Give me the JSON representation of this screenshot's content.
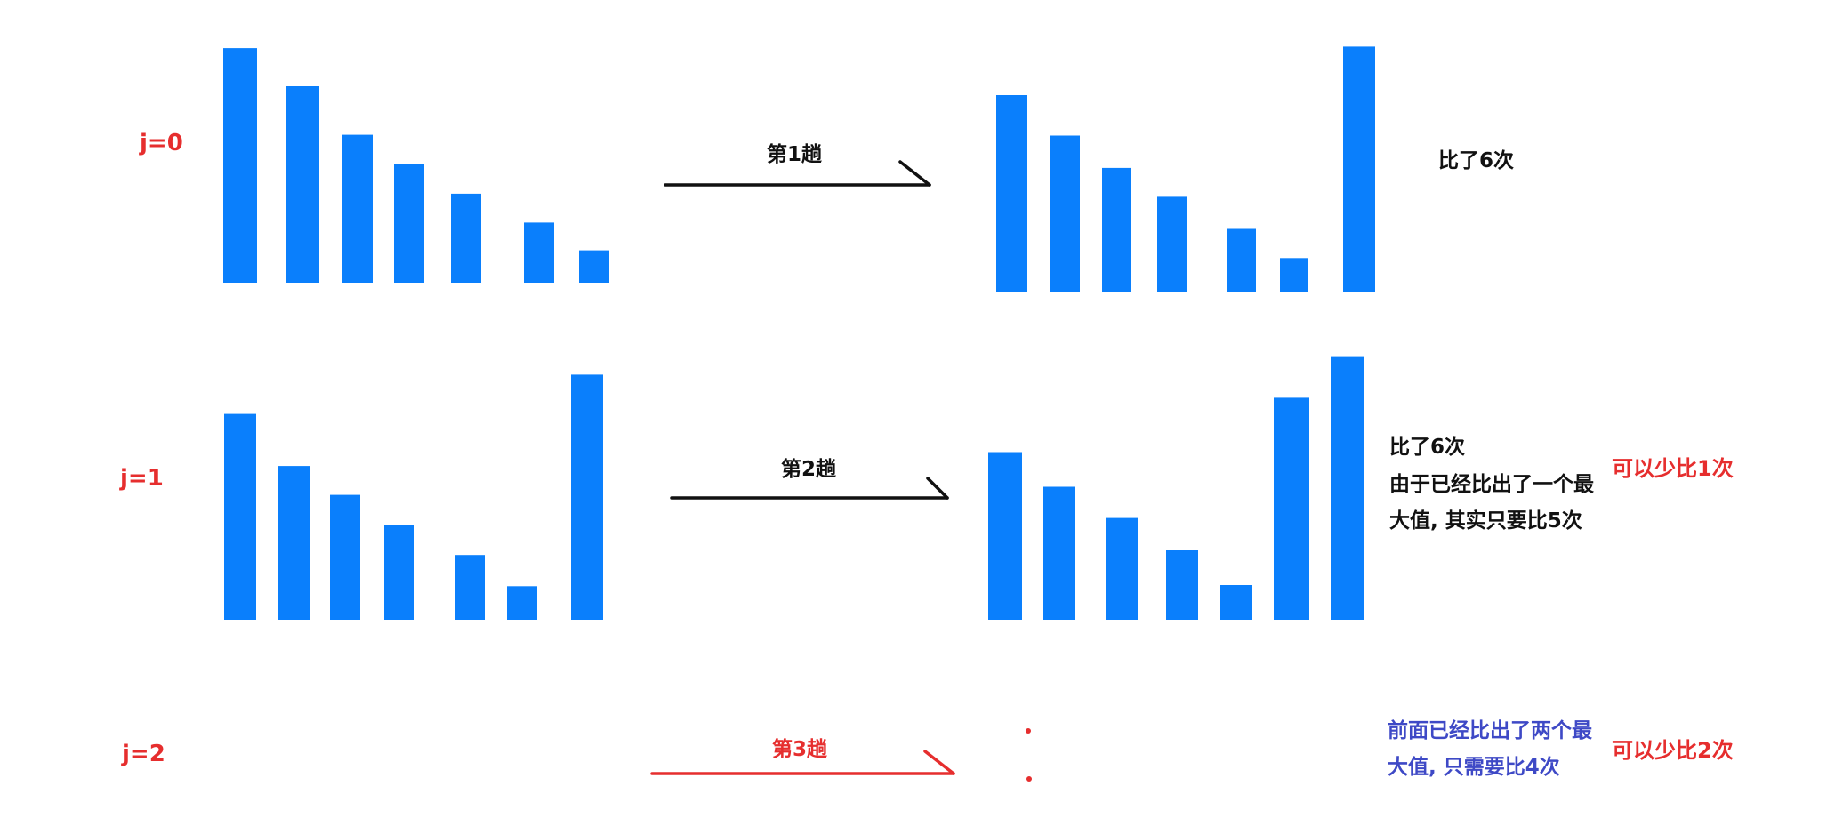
{
  "colors": {
    "bar": "#0a7ffc",
    "arrow_black": "#111111",
    "arrow_red": "#e62e2e",
    "label_red": "#e62e2e",
    "note_blue": "#3e49c6"
  },
  "rows": [
    {
      "j_label": "j=0",
      "pass_label": "第1趟",
      "arrow_color": "black",
      "before_bars": [
        203,
        170,
        128,
        103,
        77,
        52,
        28
      ],
      "after_bars": [
        170,
        135,
        107,
        82,
        55,
        29,
        212
      ],
      "notes": [
        "比了6次"
      ],
      "side_note": ""
    },
    {
      "j_label": "j=1",
      "pass_label": "第2趟",
      "arrow_color": "black",
      "before_bars": [
        178,
        133,
        108,
        82,
        56,
        29,
        212
      ],
      "after_bars": [
        145,
        115,
        88,
        60,
        30,
        192,
        228
      ],
      "notes": [
        "比了6次",
        "由于已经比出了一个最",
        "大值, 其实只要比5次"
      ],
      "side_note": "可以少比1次"
    },
    {
      "j_label": "j=2",
      "pass_label": "第3趟",
      "arrow_color": "red",
      "before_bars": [],
      "after_bars": [],
      "notes": [
        "前面已经比出了两个最",
        "大值, 只需要比4次"
      ],
      "side_note": "可以少比2次"
    }
  ]
}
